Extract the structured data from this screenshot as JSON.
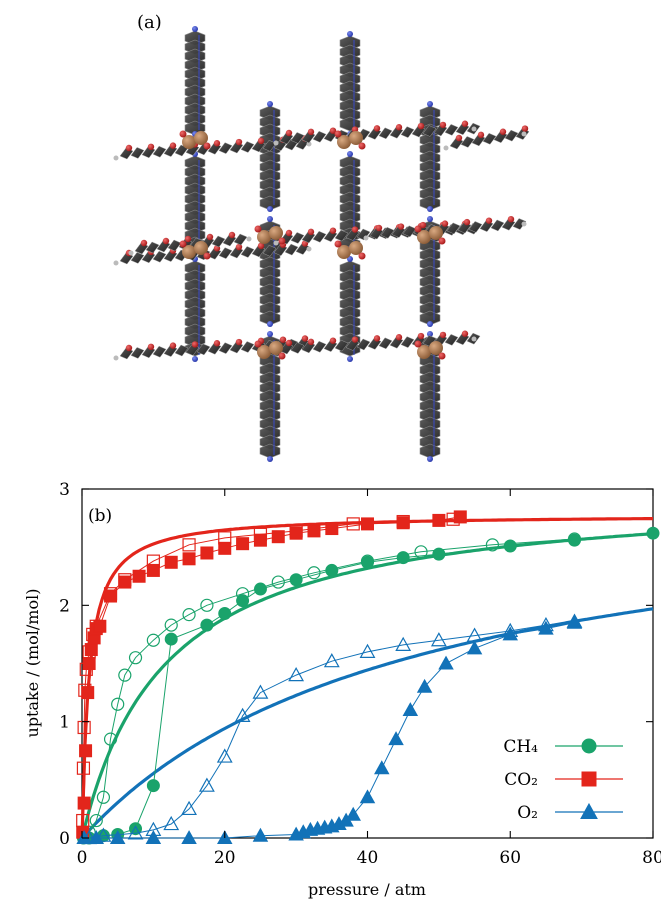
{
  "panel_a": {
    "label": "(a)"
  },
  "chart_data": {
    "type": "scatter",
    "panel_label": "(b)",
    "xlabel": "pressure / atm",
    "ylabel": "uptake / (mol/mol)",
    "xlim": [
      0,
      80
    ],
    "ylim": [
      0,
      3
    ],
    "x_ticks": [
      0,
      20,
      40,
      60,
      80
    ],
    "y_ticks": [
      0,
      1,
      2,
      3
    ],
    "grid": false,
    "legend_position": "bottom-right",
    "series": [
      {
        "name": "CH4",
        "legend_label": "CH₄",
        "color": "#1aa36b",
        "marker": "circle",
        "fit": {
          "qmax": 3.0,
          "b": 0.085
        },
        "adsorption": [
          [
            0.2,
            0.0
          ],
          [
            1,
            0.0
          ],
          [
            3,
            0.02
          ],
          [
            5,
            0.03
          ],
          [
            7.5,
            0.08
          ],
          [
            10,
            0.45
          ],
          [
            12.5,
            1.71
          ],
          [
            17.5,
            1.83
          ],
          [
            20,
            1.93
          ],
          [
            22.5,
            2.04
          ],
          [
            25,
            2.14
          ],
          [
            30,
            2.22
          ],
          [
            35,
            2.3
          ],
          [
            40,
            2.37
          ],
          [
            45,
            2.41
          ],
          [
            50,
            2.44
          ],
          [
            60,
            2.51
          ],
          [
            69,
            2.56
          ],
          [
            80,
            2.62
          ]
        ],
        "desorption": [
          [
            1,
            0.05
          ],
          [
            2,
            0.15
          ],
          [
            3,
            0.35
          ],
          [
            4,
            0.85
          ],
          [
            5,
            1.15
          ],
          [
            6,
            1.4
          ],
          [
            7.5,
            1.55
          ],
          [
            10,
            1.7
          ],
          [
            12.5,
            1.83
          ],
          [
            15,
            1.92
          ],
          [
            17.5,
            2.0
          ],
          [
            22.5,
            2.1
          ],
          [
            27.5,
            2.2
          ],
          [
            32.5,
            2.28
          ],
          [
            40,
            2.38
          ],
          [
            47.5,
            2.46
          ],
          [
            57.5,
            2.52
          ],
          [
            69,
            2.57
          ]
        ]
      },
      {
        "name": "CO2",
        "legend_label": "CO₂",
        "color": "#e3251b",
        "marker": "square",
        "fit": {
          "qmax": 2.78,
          "b": 1.0
        },
        "adsorption": [
          [
            0.1,
            0.05
          ],
          [
            0.3,
            0.3
          ],
          [
            0.5,
            0.75
          ],
          [
            0.8,
            1.25
          ],
          [
            1,
            1.5
          ],
          [
            1.3,
            1.62
          ],
          [
            1.7,
            1.72
          ],
          [
            2,
            1.8
          ],
          [
            2.5,
            1.82
          ],
          [
            4,
            2.08
          ],
          [
            6,
            2.2
          ],
          [
            8,
            2.25
          ],
          [
            10,
            2.3
          ],
          [
            12.5,
            2.37
          ],
          [
            15,
            2.4
          ],
          [
            17.5,
            2.45
          ],
          [
            20,
            2.49
          ],
          [
            22.5,
            2.53
          ],
          [
            25,
            2.56
          ],
          [
            27.5,
            2.59
          ],
          [
            30,
            2.62
          ],
          [
            32.5,
            2.64
          ],
          [
            35,
            2.66
          ],
          [
            40,
            2.7
          ],
          [
            45,
            2.71
          ],
          [
            50,
            2.73
          ],
          [
            53,
            2.76
          ]
        ],
        "desorption": [
          [
            0.1,
            0.15
          ],
          [
            0.2,
            0.6
          ],
          [
            0.3,
            0.95
          ],
          [
            0.4,
            1.27
          ],
          [
            0.6,
            1.45
          ],
          [
            1,
            1.6
          ],
          [
            1.5,
            1.75
          ],
          [
            2,
            1.82
          ],
          [
            4,
            2.1
          ],
          [
            6,
            2.22
          ],
          [
            10,
            2.38
          ],
          [
            15,
            2.52
          ],
          [
            20,
            2.58
          ],
          [
            25,
            2.61
          ],
          [
            30,
            2.64
          ],
          [
            38,
            2.7
          ],
          [
            45,
            2.72
          ],
          [
            52,
            2.74
          ]
        ]
      },
      {
        "name": "O2",
        "legend_label": "O₂",
        "color": "#1272b8",
        "marker": "triangle",
        "fit": {
          "qmax": 3.1,
          "b": 0.0218
        },
        "adsorption": [
          [
            0.3,
            0.0
          ],
          [
            2,
            0.0
          ],
          [
            5,
            0.0
          ],
          [
            10,
            0.0
          ],
          [
            15,
            0.0
          ],
          [
            20,
            0.0
          ],
          [
            25,
            0.02
          ],
          [
            30,
            0.03
          ],
          [
            31,
            0.05
          ],
          [
            32,
            0.07
          ],
          [
            33,
            0.08
          ],
          [
            34,
            0.09
          ],
          [
            35,
            0.1
          ],
          [
            36,
            0.12
          ],
          [
            37,
            0.15
          ],
          [
            38,
            0.2
          ],
          [
            40,
            0.35
          ],
          [
            42,
            0.6
          ],
          [
            44,
            0.85
          ],
          [
            46,
            1.1
          ],
          [
            48,
            1.3
          ],
          [
            51,
            1.5
          ],
          [
            55,
            1.63
          ],
          [
            60,
            1.75
          ],
          [
            65,
            1.8
          ],
          [
            69,
            1.85
          ]
        ],
        "desorption": [
          [
            1,
            0.0
          ],
          [
            3,
            0.02
          ],
          [
            7.5,
            0.04
          ],
          [
            10,
            0.07
          ],
          [
            12.5,
            0.12
          ],
          [
            15,
            0.25
          ],
          [
            17.5,
            0.45
          ],
          [
            20,
            0.7
          ],
          [
            22.5,
            1.05
          ],
          [
            25,
            1.25
          ],
          [
            30,
            1.4
          ],
          [
            35,
            1.52
          ],
          [
            40,
            1.6
          ],
          [
            45,
            1.66
          ],
          [
            50,
            1.7
          ],
          [
            55,
            1.74
          ],
          [
            60,
            1.78
          ],
          [
            65,
            1.83
          ],
          [
            69,
            1.86
          ]
        ]
      }
    ]
  }
}
